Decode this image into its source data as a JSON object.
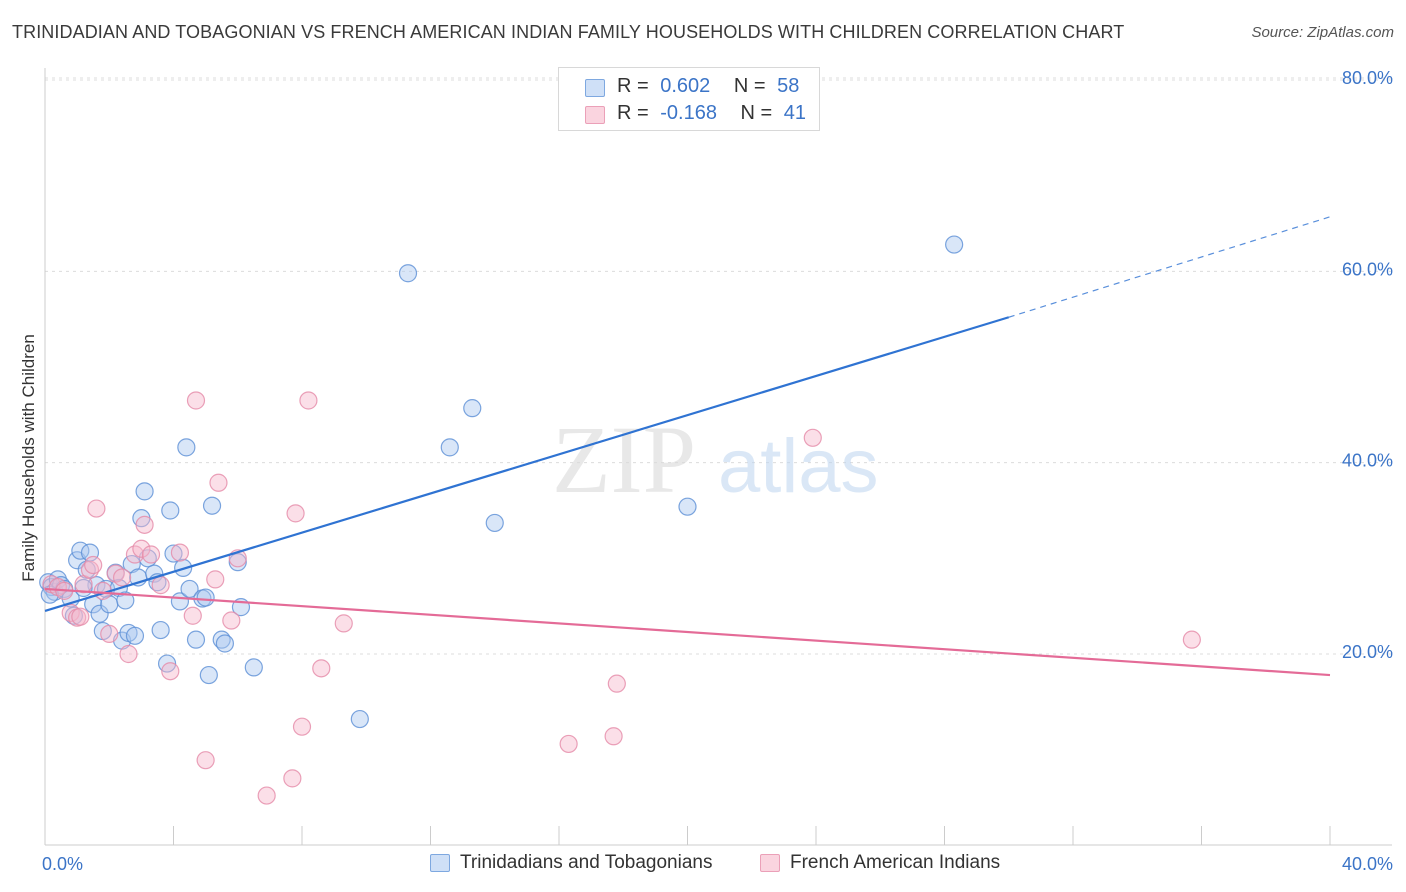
{
  "title": "TRINIDADIAN AND TOBAGONIAN VS FRENCH AMERICAN INDIAN FAMILY HOUSEHOLDS WITH CHILDREN CORRELATION CHART",
  "source": "Source: ZipAtlas.com",
  "watermark": {
    "zip": "ZIP",
    "atlas": "atlas"
  },
  "legend": {
    "rows": [
      {
        "r_label": "R =",
        "r_value": "0.602",
        "n_label": "N =",
        "n_value": "58",
        "color": "#aac8f0"
      },
      {
        "r_label": "R =",
        "r_value": "-0.168",
        "n_label": "N =",
        "n_value": "41",
        "color": "#f6b8cb"
      }
    ]
  },
  "bottom_legend": [
    {
      "label": "Trinidadians and Tobagonians",
      "color": "#aac8f0"
    },
    {
      "label": "French American Indians",
      "color": "#f6b8cb"
    }
  ],
  "chart_data": {
    "type": "scatter",
    "title": "TRINIDADIAN AND TOBAGONIAN VS FRENCH AMERICAN INDIAN FAMILY HOUSEHOLDS WITH CHILDREN CORRELATION CHART",
    "xlabel": "",
    "ylabel": "Family Households with Children",
    "xlim": [
      0,
      40
    ],
    "ylim": [
      0,
      82
    ],
    "x_tick_labels": [
      "0.0%",
      "40.0%"
    ],
    "y_tick_labels": [
      "20.0%",
      "40.0%",
      "60.0%",
      "80.0%"
    ],
    "y_ticks": [
      20,
      40,
      60,
      80
    ],
    "grid": true,
    "legend_position": "top-center",
    "series": [
      {
        "name": "Trinidadians and Tobagonians",
        "color": "#5b8fd6",
        "fill": "#aac8f0",
        "trend_color": "#2f73d2",
        "trend": {
          "x0": 0,
          "y0": 24.5,
          "x1": 30,
          "y1": 55.2,
          "dash_to_x": 40,
          "dash_to_y": 65.7
        },
        "points": [
          [
            0.1,
            27.5
          ],
          [
            0.2,
            27.0
          ],
          [
            0.3,
            26.5
          ],
          [
            0.4,
            27.8
          ],
          [
            0.5,
            27.2
          ],
          [
            0.6,
            26.8
          ],
          [
            0.8,
            25.8
          ],
          [
            0.9,
            24.0
          ],
          [
            1.0,
            29.8
          ],
          [
            1.1,
            30.8
          ],
          [
            1.3,
            28.8
          ],
          [
            1.4,
            30.6
          ],
          [
            1.5,
            25.2
          ],
          [
            1.6,
            27.2
          ],
          [
            1.7,
            24.2
          ],
          [
            1.8,
            22.4
          ],
          [
            1.9,
            26.8
          ],
          [
            2.0,
            25.2
          ],
          [
            2.2,
            28.5
          ],
          [
            2.3,
            26.9
          ],
          [
            2.4,
            21.4
          ],
          [
            2.5,
            25.6
          ],
          [
            2.6,
            22.2
          ],
          [
            2.7,
            29.4
          ],
          [
            2.8,
            21.9
          ],
          [
            2.9,
            28.0
          ],
          [
            3.0,
            34.2
          ],
          [
            3.1,
            37.0
          ],
          [
            3.2,
            30.0
          ],
          [
            3.4,
            28.4
          ],
          [
            3.5,
            27.5
          ],
          [
            3.6,
            22.5
          ],
          [
            3.8,
            19.0
          ],
          [
            3.9,
            35.0
          ],
          [
            4.0,
            30.5
          ],
          [
            4.2,
            25.5
          ],
          [
            4.3,
            29.0
          ],
          [
            4.4,
            41.6
          ],
          [
            4.5,
            26.8
          ],
          [
            4.7,
            21.5
          ],
          [
            4.9,
            25.8
          ],
          [
            5.0,
            25.9
          ],
          [
            5.1,
            17.8
          ],
          [
            5.2,
            35.5
          ],
          [
            5.5,
            21.5
          ],
          [
            5.6,
            21.1
          ],
          [
            6.0,
            29.6
          ],
          [
            6.1,
            24.9
          ],
          [
            6.5,
            18.6
          ],
          [
            9.8,
            13.2
          ],
          [
            11.3,
            59.8
          ],
          [
            12.6,
            41.6
          ],
          [
            13.3,
            45.7
          ],
          [
            14.0,
            33.7
          ],
          [
            20.0,
            35.4
          ],
          [
            28.3,
            62.8
          ],
          [
            0.15,
            26.2
          ],
          [
            1.2,
            26.9
          ]
        ]
      },
      {
        "name": "French American Indians",
        "color": "#e58aa7",
        "fill": "#f6b8cb",
        "trend_color": "#e46b97",
        "trend": {
          "x0": 0,
          "y0": 26.8,
          "x1": 40,
          "y1": 17.8
        },
        "points": [
          [
            0.2,
            27.3
          ],
          [
            0.4,
            27.0
          ],
          [
            0.6,
            26.6
          ],
          [
            0.8,
            24.3
          ],
          [
            1.0,
            23.8
          ],
          [
            1.2,
            27.3
          ],
          [
            1.4,
            28.8
          ],
          [
            1.5,
            29.3
          ],
          [
            1.6,
            35.2
          ],
          [
            1.8,
            26.6
          ],
          [
            2.0,
            22.1
          ],
          [
            2.2,
            28.4
          ],
          [
            2.4,
            28.0
          ],
          [
            2.6,
            20.0
          ],
          [
            2.8,
            30.4
          ],
          [
            3.0,
            31.0
          ],
          [
            3.1,
            33.5
          ],
          [
            3.3,
            30.4
          ],
          [
            3.6,
            27.2
          ],
          [
            3.9,
            18.2
          ],
          [
            4.2,
            30.6
          ],
          [
            4.6,
            24.0
          ],
          [
            4.7,
            46.5
          ],
          [
            5.0,
            8.9
          ],
          [
            5.3,
            27.8
          ],
          [
            5.4,
            37.9
          ],
          [
            5.8,
            23.5
          ],
          [
            6.0,
            30.0
          ],
          [
            6.9,
            5.2
          ],
          [
            7.7,
            7.0
          ],
          [
            7.8,
            34.7
          ],
          [
            8.0,
            12.4
          ],
          [
            8.2,
            46.5
          ],
          [
            8.6,
            18.5
          ],
          [
            9.3,
            23.2
          ],
          [
            16.3,
            10.6
          ],
          [
            17.7,
            11.4
          ],
          [
            17.8,
            16.9
          ],
          [
            23.9,
            42.6
          ],
          [
            35.7,
            21.5
          ],
          [
            1.1,
            23.9
          ]
        ]
      }
    ]
  }
}
